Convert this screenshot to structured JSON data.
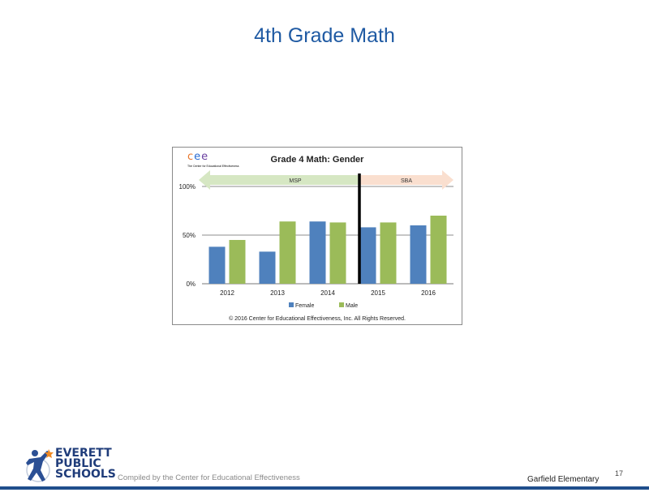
{
  "slide": {
    "title": "4th Grade Math",
    "page_number": "17",
    "footer_compiled": "Compiled by the Center for Educational Effectiveness",
    "footer_school": "Garfield Elementary",
    "logo_lines": [
      "EVERETT",
      "PUBLIC",
      "SCHOOLS"
    ]
  },
  "cee_logo": {
    "letters": [
      "c",
      "e",
      "e"
    ],
    "letter_colors": [
      "#e8762b",
      "#2a6bd1",
      "#6a3fa0"
    ],
    "subtitle": "The Center for Educational Effectiveness"
  },
  "chart_data": {
    "type": "bar",
    "title": "Grade 4 Math: Gender",
    "categories": [
      "2012",
      "2013",
      "2014",
      "2015",
      "2016"
    ],
    "series": [
      {
        "name": "Female",
        "color": "#4f81bd",
        "values": [
          38,
          33,
          64,
          58,
          60
        ]
      },
      {
        "name": "Male",
        "color": "#9bbb59",
        "values": [
          45,
          64,
          63,
          63,
          70
        ]
      }
    ],
    "ylim": [
      0,
      100
    ],
    "yticks": [
      {
        "value": 0,
        "label": "0%"
      },
      {
        "value": 50,
        "label": "50%"
      },
      {
        "value": 100,
        "label": "100%"
      }
    ],
    "grid": true,
    "legend_position": "bottom",
    "test_periods": [
      {
        "label": "MSP",
        "color": "#d6e7c3",
        "from": "2012",
        "to": "2014"
      },
      {
        "label": "SBA",
        "color": "#fadfcf",
        "from": "2015",
        "to": "2016"
      }
    ],
    "copyright": "© 2016 Center for Educational Effectiveness, Inc. All Rights Reserved."
  }
}
